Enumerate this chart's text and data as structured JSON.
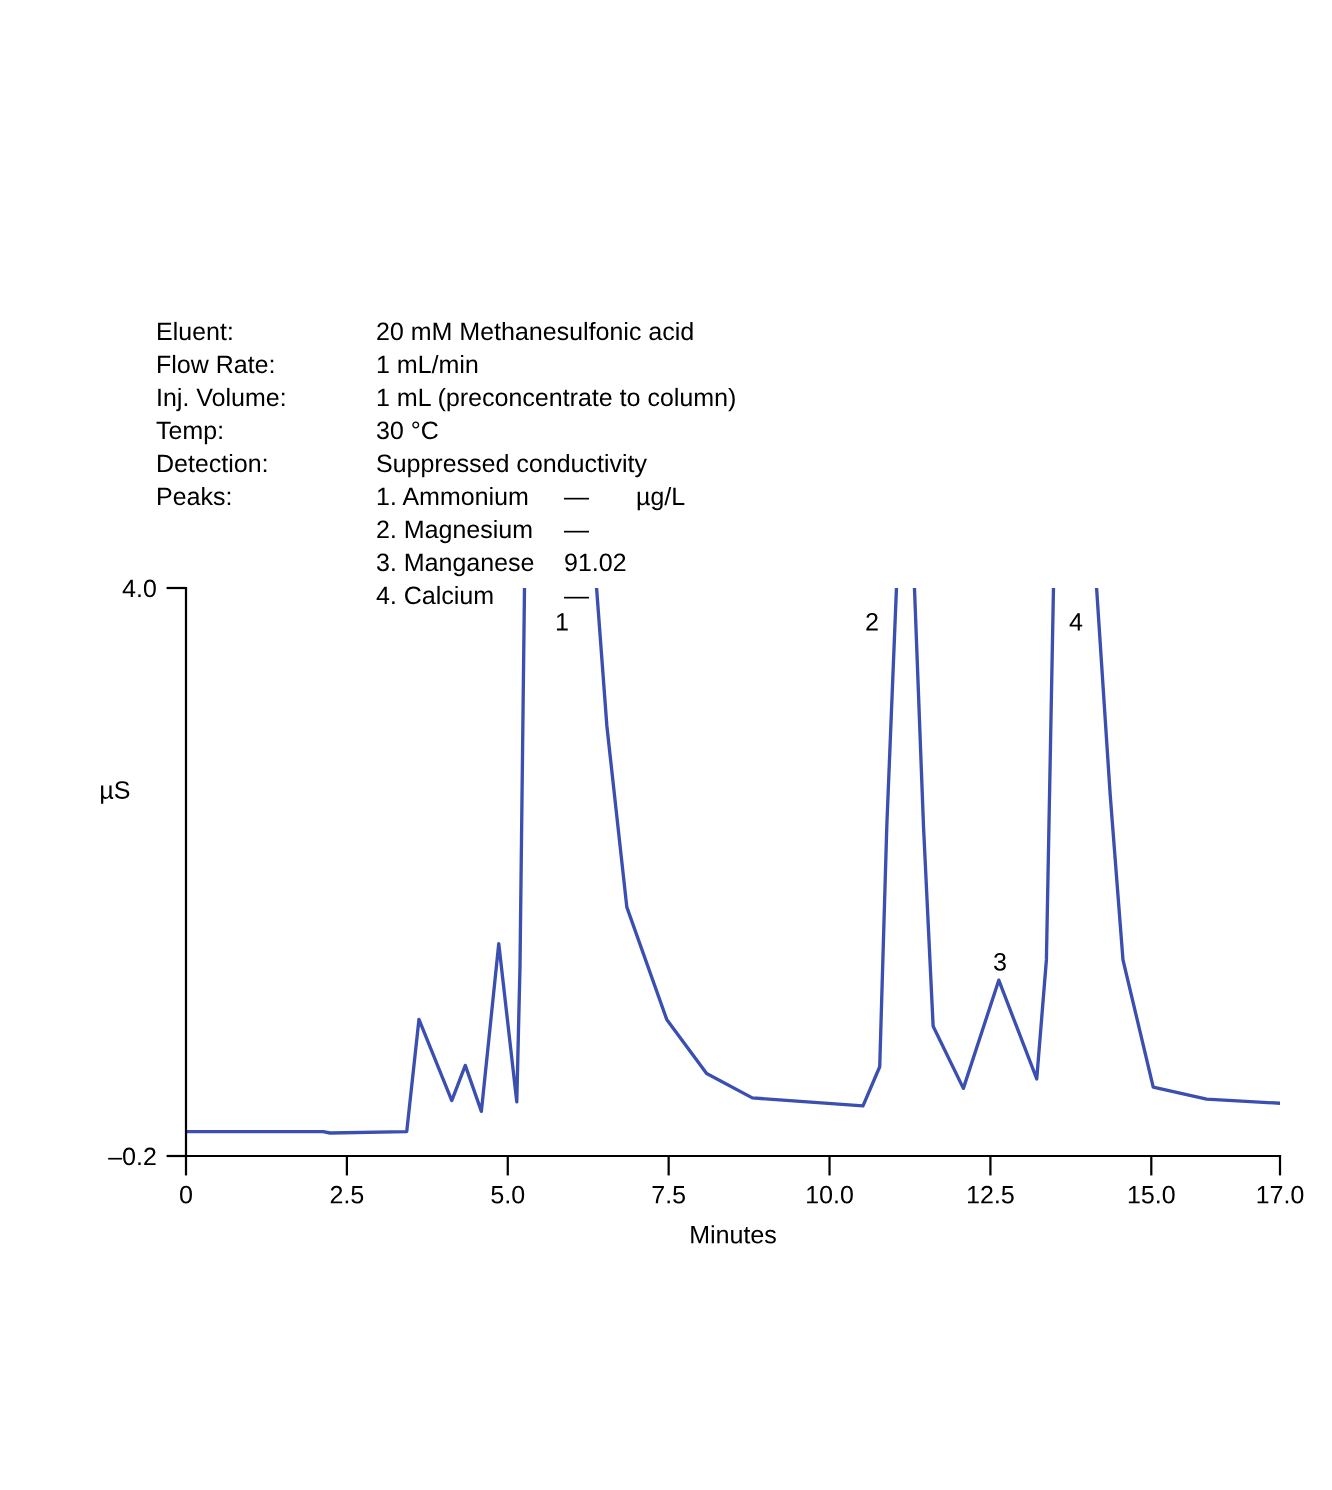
{
  "chart_data": {
    "type": "line",
    "xlabel": "Minutes",
    "ylabel": "µS",
    "x": [
      0,
      2.13,
      2.24,
      3.43,
      3.62,
      4.13,
      4.34,
      4.59,
      4.86,
      5.14,
      5.19,
      5.26,
      5.8,
      6.38,
      6.54,
      6.85,
      7.47,
      8.09,
      8.8,
      10.52,
      10.78,
      10.89,
      11.04,
      11.18,
      11.32,
      11.46,
      11.61,
      12.08,
      12.63,
      13.22,
      13.37,
      13.48,
      13.8,
      14.15,
      14.36,
      14.56,
      15.03,
      15.86,
      17.0
    ],
    "series": [
      {
        "color": "#3a4fb0",
        "values": [
          -0.02,
          -0.02,
          -0.03,
          -0.02,
          0.81,
          0.21,
          0.47,
          0.13,
          1.37,
          0.2,
          1.2,
          4.0,
          null,
          4.0,
          2.98,
          1.64,
          0.81,
          0.41,
          0.23,
          0.17,
          0.46,
          2.24,
          4.0,
          null,
          4.0,
          2.24,
          0.76,
          0.3,
          1.1,
          0.37,
          1.25,
          4.0,
          null,
          4.0,
          2.48,
          1.25,
          0.31,
          0.22,
          0.19
        ]
      }
    ],
    "xlim": [
      0,
      17.0
    ],
    "ylim": [
      -0.2,
      4.0
    ],
    "xticks": [
      0,
      2.5,
      {
        "value": 5,
        "label": "5.0"
      },
      7.5,
      {
        "value": 10,
        "label": "10.0"
      },
      12.5,
      {
        "value": 15,
        "label": "15.0"
      },
      {
        "value": 17,
        "label": "17.0"
      }
    ],
    "yticks": [
      {
        "value": -0.2,
        "label": "–0.2"
      },
      {
        "value": 4.0,
        "label": "4.0"
      }
    ],
    "grid": false,
    "legend": false,
    "marker": "none",
    "line_style": "solid",
    "annotations": [
      "1",
      "2",
      "3",
      "4",
      "Eluent:",
      "20 mM Methanesulfonic acid",
      "Flow Rate:",
      "1 mL/min",
      "Inj. Volume:",
      "1 mL (preconcentrate to column)",
      "Temp:",
      "30 °C",
      "Detection:",
      "Suppressed conductivity",
      "Peaks:",
      "1. Ammonium",
      "—",
      "µg/L",
      "2. Magnesium",
      "—",
      "3. Manganese",
      "91.02",
      "4. Calcium",
      "—"
    ]
  }
}
